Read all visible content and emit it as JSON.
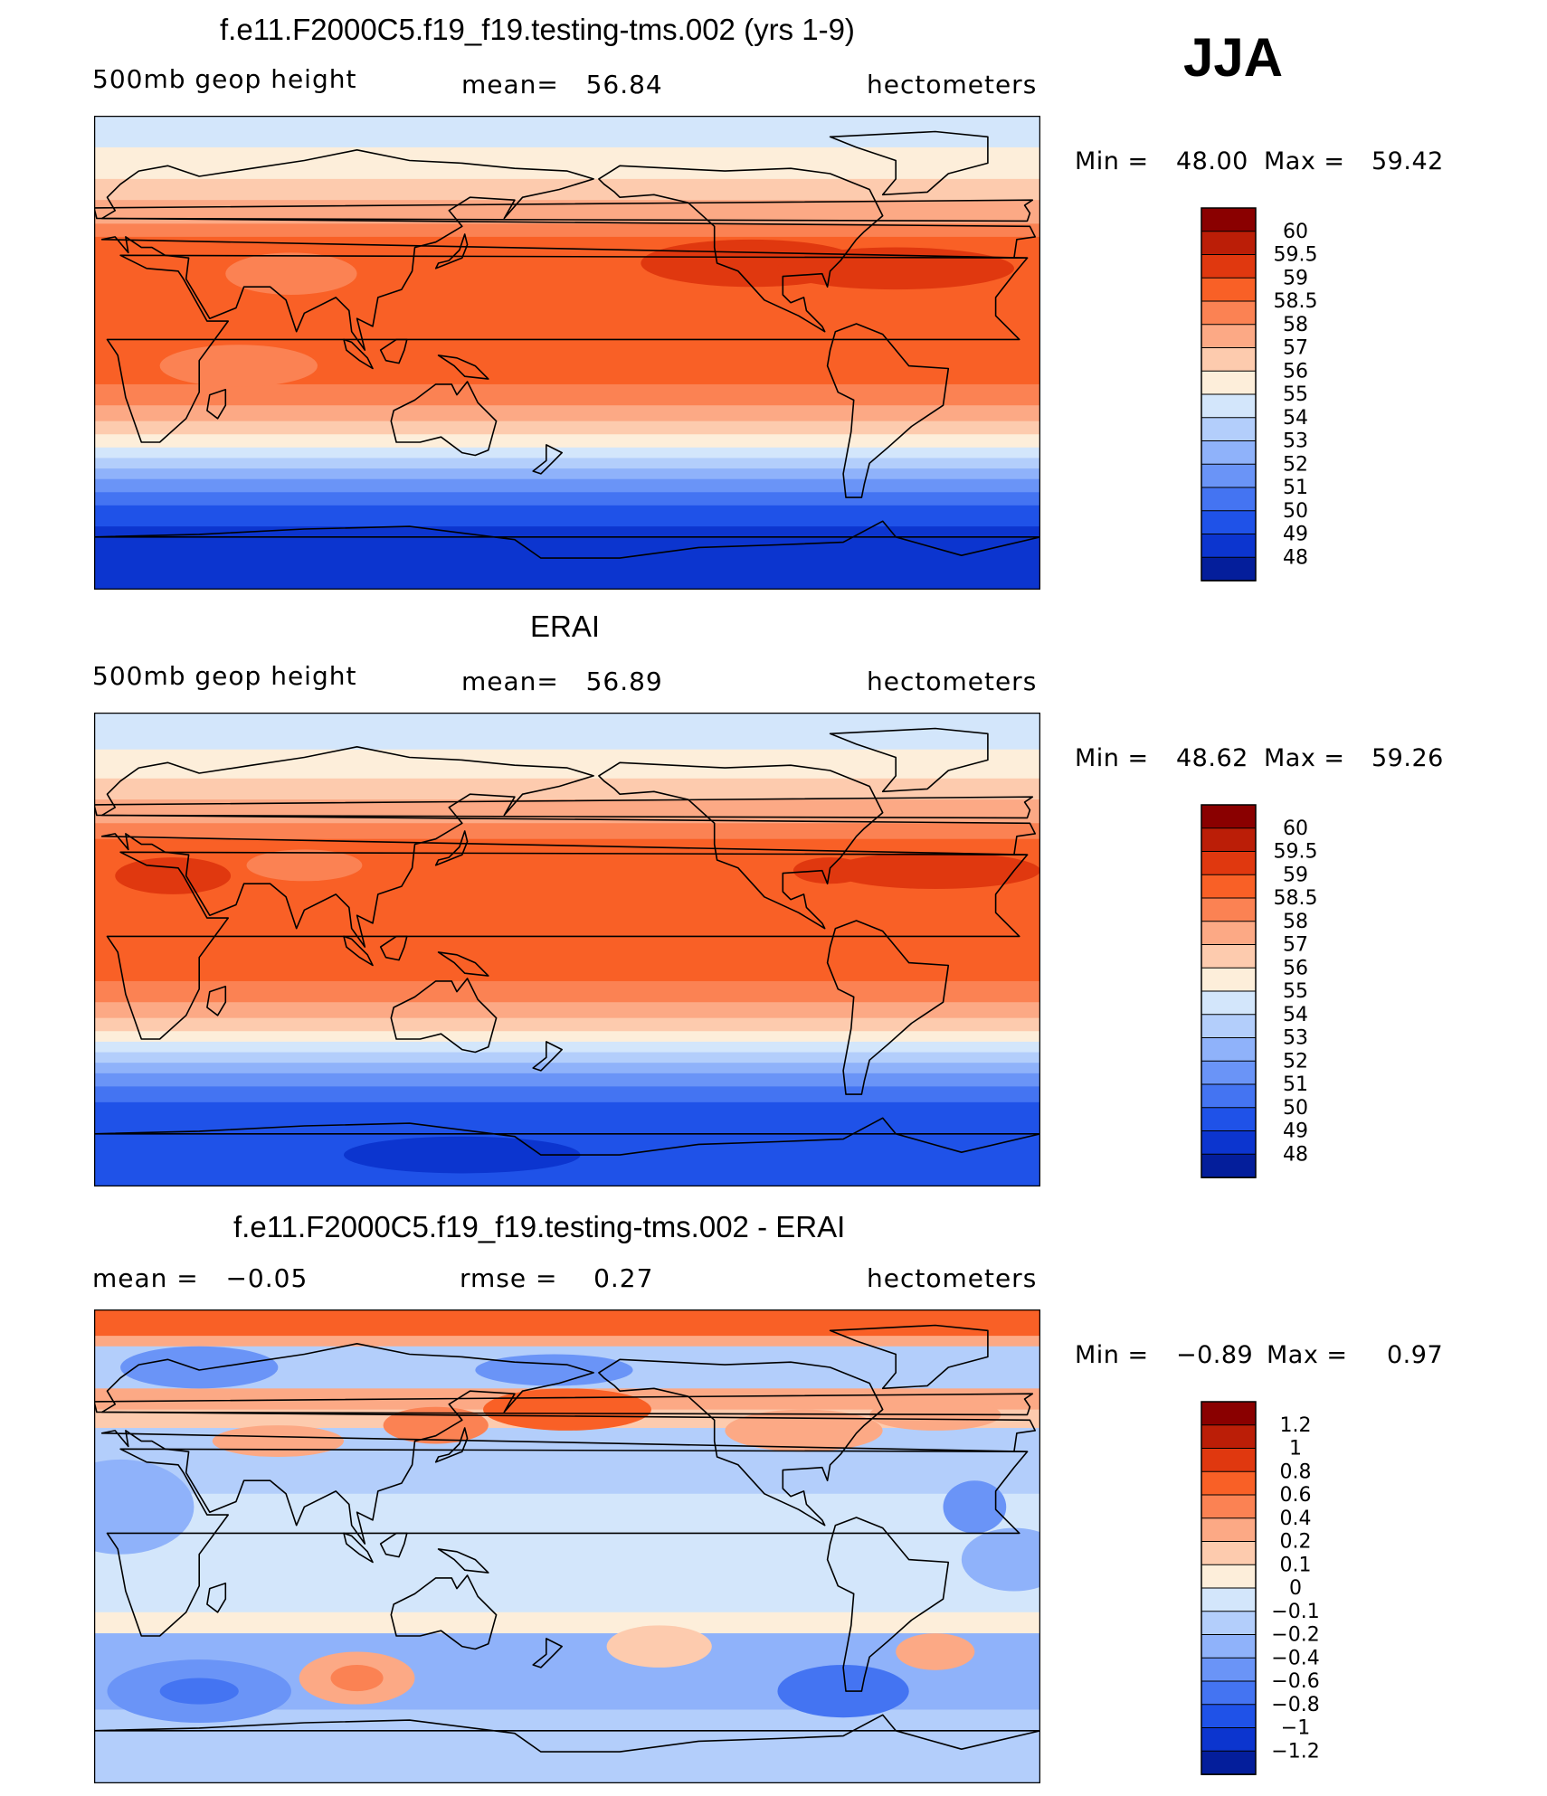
{
  "season": "JJA",
  "colors": {
    "warm": [
      "#fdeeda",
      "#fdcbae",
      "#fca985",
      "#fb8253",
      "#f96026",
      "#e0380f",
      "#bb1e07",
      "#8a0000"
    ],
    "cool": [
      "#d3e6fb",
      "#b3cefb",
      "#8fb2fa",
      "#6a94f7",
      "#4474f2",
      "#1f52e8",
      "#0c35cf",
      "#041e9b",
      "#000080"
    ],
    "outline": "#000000"
  },
  "chart_data": [
    {
      "type": "contour-map",
      "title": "f.e11.F2000C5.f19_f19.testing-tms.002 (yrs 1-9)",
      "variable": "500mb geop height",
      "stat_text": "mean=   56.84",
      "units": "hectometers",
      "min_label": "Min =",
      "min_value": "48.00",
      "max_label": "Max =",
      "max_value": "59.42",
      "levels": [
        "60",
        "59.5",
        "59",
        "58.5",
        "58",
        "57",
        "56",
        "55",
        "54",
        "53",
        "52",
        "51",
        "50",
        "49",
        "48"
      ],
      "colors": [
        "#8a0000",
        "#bb1e07",
        "#e0380f",
        "#f96026",
        "#fb8253",
        "#fca985",
        "#fdcbae",
        "#fdeeda",
        "#d3e6fb",
        "#b3cefb",
        "#8fb2fa",
        "#6a94f7",
        "#4474f2",
        "#1f52e8",
        "#0c35cf",
        "#041e9b"
      ],
      "bands": [
        {
          "lat_top": 90,
          "lat_bottom": 78,
          "value": 54.5
        },
        {
          "lat_top": 78,
          "lat_bottom": 66,
          "value": 55.5
        },
        {
          "lat_top": 66,
          "lat_bottom": 58,
          "value": 56.5
        },
        {
          "lat_top": 58,
          "lat_bottom": 49,
          "value": 57.5
        },
        {
          "lat_top": 49,
          "lat_bottom": 44,
          "value": 58.2
        },
        {
          "lat_top": 44,
          "lat_bottom": -12,
          "value": 58.7
        },
        {
          "lat_top": -12,
          "lat_bottom": -20,
          "value": 58.2
        },
        {
          "lat_top": -20,
          "lat_bottom": -26,
          "value": 57.5
        },
        {
          "lat_top": -26,
          "lat_bottom": -31,
          "value": 56.5
        },
        {
          "lat_top": -31,
          "lat_bottom": -36,
          "value": 55.5
        },
        {
          "lat_top": -36,
          "lat_bottom": -40,
          "value": 54.5
        },
        {
          "lat_top": -40,
          "lat_bottom": -44,
          "value": 53.5
        },
        {
          "lat_top": -44,
          "lat_bottom": -48,
          "value": 52.5
        },
        {
          "lat_top": -48,
          "lat_bottom": -53,
          "value": 51.5
        },
        {
          "lat_top": -53,
          "lat_bottom": -58,
          "value": 50.5
        },
        {
          "lat_top": -58,
          "lat_bottom": -66,
          "value": 49.5
        },
        {
          "lat_top": -66,
          "lat_bottom": -90,
          "value": 48.5
        }
      ],
      "blobs": [
        {
          "lon": 250,
          "lat": 34,
          "rlon": 42,
          "rlat": 9,
          "value": 59.2
        },
        {
          "lon": 305,
          "lat": 32,
          "rlon": 45,
          "rlat": 8,
          "value": 59.2
        },
        {
          "lon": 75,
          "lat": 30,
          "rlon": 25,
          "rlat": 8,
          "value": 58.2
        },
        {
          "lon": 55,
          "lat": -5,
          "rlon": 30,
          "rlat": 8,
          "value": 58.2
        }
      ]
    },
    {
      "type": "contour-map",
      "title": "ERAI",
      "variable": "500mb geop height",
      "stat_text": "mean=   56.89",
      "units": "hectometers",
      "min_label": "Min =",
      "min_value": "48.62",
      "max_label": "Max =",
      "max_value": "59.26",
      "levels": [
        "60",
        "59.5",
        "59",
        "58.5",
        "58",
        "57",
        "56",
        "55",
        "54",
        "53",
        "52",
        "51",
        "50",
        "49",
        "48"
      ],
      "colors": [
        "#8a0000",
        "#bb1e07",
        "#e0380f",
        "#f96026",
        "#fb8253",
        "#fca985",
        "#fdcbae",
        "#fdeeda",
        "#d3e6fb",
        "#b3cefb",
        "#8fb2fa",
        "#6a94f7",
        "#4474f2",
        "#1f52e8",
        "#0c35cf",
        "#041e9b"
      ],
      "bands": [
        {
          "lat_top": 90,
          "lat_bottom": 76,
          "value": 54.5
        },
        {
          "lat_top": 76,
          "lat_bottom": 65,
          "value": 55.5
        },
        {
          "lat_top": 65,
          "lat_bottom": 57,
          "value": 56.5
        },
        {
          "lat_top": 57,
          "lat_bottom": 48,
          "value": 57.5
        },
        {
          "lat_top": 48,
          "lat_bottom": 42,
          "value": 58.2
        },
        {
          "lat_top": 42,
          "lat_bottom": -12,
          "value": 58.7
        },
        {
          "lat_top": -12,
          "lat_bottom": -20,
          "value": 58.2
        },
        {
          "lat_top": -20,
          "lat_bottom": -26,
          "value": 57.5
        },
        {
          "lat_top": -26,
          "lat_bottom": -31,
          "value": 56.5
        },
        {
          "lat_top": -31,
          "lat_bottom": -35,
          "value": 55.5
        },
        {
          "lat_top": -35,
          "lat_bottom": -39,
          "value": 54.5
        },
        {
          "lat_top": -39,
          "lat_bottom": -43,
          "value": 53.5
        },
        {
          "lat_top": -43,
          "lat_bottom": -47,
          "value": 52.5
        },
        {
          "lat_top": -47,
          "lat_bottom": -52,
          "value": 51.5
        },
        {
          "lat_top": -52,
          "lat_bottom": -58,
          "value": 50.5
        },
        {
          "lat_top": -58,
          "lat_bottom": -90,
          "value": 49.5
        }
      ],
      "blobs": [
        {
          "lon": 280,
          "lat": 30,
          "rlon": 14,
          "rlat": 5,
          "value": 59.2
        },
        {
          "lon": 320,
          "lat": 30,
          "rlon": 40,
          "rlat": 7,
          "value": 59.2
        },
        {
          "lon": 30,
          "lat": 28,
          "rlon": 22,
          "rlat": 7,
          "value": 59.2
        },
        {
          "lon": 80,
          "lat": 32,
          "rlon": 22,
          "rlat": 6,
          "value": 58.2
        },
        {
          "lon": 140,
          "lat": -78,
          "rlon": 45,
          "rlat": 7,
          "value": 48.5
        }
      ]
    },
    {
      "type": "contour-map",
      "title": "f.e11.F2000C5.f19_f19.testing-tms.002 - ERAI",
      "variable": "mean =   −0.05",
      "stat_text": "rmse =    0.27",
      "units": "hectometers",
      "min_label": "Min =",
      "min_value": "−0.89",
      "max_label": "Max =",
      "max_value": "0.97",
      "levels": [
        "1.2",
        "1",
        "0.8",
        "0.6",
        "0.4",
        "0.2",
        "0.1",
        "0",
        "−0.1",
        "−0.2",
        "−0.4",
        "−0.6",
        "−0.8",
        "−1",
        "−1.2"
      ],
      "colors": [
        "#8a0000",
        "#bb1e07",
        "#e0380f",
        "#f96026",
        "#fb8253",
        "#fca985",
        "#fdcbae",
        "#fdeeda",
        "#d3e6fb",
        "#b3cefb",
        "#8fb2fa",
        "#6a94f7",
        "#4474f2",
        "#1f52e8",
        "#0c35cf",
        "#041e9b"
      ],
      "bands": [
        {
          "lat_top": 90,
          "lat_bottom": 80,
          "value": 0.7
        },
        {
          "lat_top": 80,
          "lat_bottom": 76,
          "value": 0.3
        },
        {
          "lat_top": 76,
          "lat_bottom": 60,
          "value": -0.15
        },
        {
          "lat_top": 60,
          "lat_bottom": 52,
          "value": 0.3
        },
        {
          "lat_top": 52,
          "lat_bottom": 45,
          "value": 0.15
        },
        {
          "lat_top": 45,
          "lat_bottom": 20,
          "value": -0.15
        },
        {
          "lat_top": 20,
          "lat_bottom": -5,
          "value": -0.05
        },
        {
          "lat_top": -5,
          "lat_bottom": -25,
          "value": -0.05
        },
        {
          "lat_top": -25,
          "lat_bottom": -33,
          "value": 0.05
        },
        {
          "lat_top": -33,
          "lat_bottom": -62,
          "value": -0.3
        },
        {
          "lat_top": -62,
          "lat_bottom": -90,
          "value": -0.15
        }
      ],
      "blobs": [
        {
          "lon": 180,
          "lat": 52,
          "rlon": 32,
          "rlat": 8,
          "value": 0.7
        },
        {
          "lon": 130,
          "lat": 46,
          "rlon": 20,
          "rlat": 7,
          "value": 0.5
        },
        {
          "lon": 270,
          "lat": 44,
          "rlon": 30,
          "rlat": 8,
          "value": 0.3
        },
        {
          "lon": 320,
          "lat": 50,
          "rlon": 25,
          "rlat": 6,
          "value": 0.3
        },
        {
          "lon": 70,
          "lat": 40,
          "rlon": 25,
          "rlat": 6,
          "value": 0.3
        },
        {
          "lon": 40,
          "lat": 68,
          "rlon": 30,
          "rlat": 8,
          "value": -0.5
        },
        {
          "lon": 175,
          "lat": 67,
          "rlon": 30,
          "rlat": 6,
          "value": -0.5
        },
        {
          "lon": 10,
          "lat": 15,
          "rlon": 28,
          "rlat": 18,
          "value": -0.3
        },
        {
          "lon": 350,
          "lat": -5,
          "rlon": 20,
          "rlat": 12,
          "value": -0.3
        },
        {
          "lon": 335,
          "lat": 15,
          "rlon": 12,
          "rlat": 10,
          "value": -0.5
        },
        {
          "lon": 40,
          "lat": -55,
          "rlon": 35,
          "rlat": 12,
          "value": -0.5
        },
        {
          "lon": 40,
          "lat": -55,
          "rlon": 15,
          "rlat": 5,
          "value": -0.7
        },
        {
          "lon": 285,
          "lat": -55,
          "rlon": 25,
          "rlat": 10,
          "value": -0.7
        },
        {
          "lon": 100,
          "lat": -50,
          "rlon": 22,
          "rlat": 10,
          "value": 0.3
        },
        {
          "lon": 100,
          "lat": -50,
          "rlon": 10,
          "rlat": 5,
          "value": 0.5
        },
        {
          "lon": 215,
          "lat": -38,
          "rlon": 20,
          "rlat": 8,
          "value": 0.15
        },
        {
          "lon": 320,
          "lat": -40,
          "rlon": 15,
          "rlat": 7,
          "value": 0.3
        }
      ]
    }
  ]
}
